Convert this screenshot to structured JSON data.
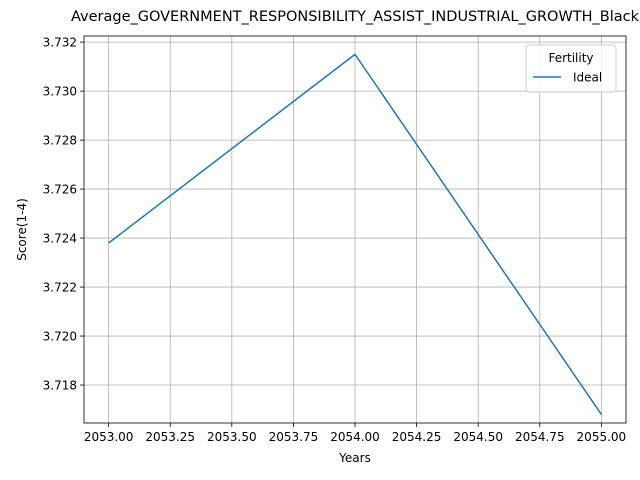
{
  "chart_data": {
    "type": "line",
    "title": "Average_GOVERNMENT_RESPONSIBILITY_ASSIST_INDUSTRIAL_GROWTH_Black",
    "xlabel": "Years",
    "ylabel": "Score(1-4)",
    "x": [
      2053,
      2054,
      2055
    ],
    "series": [
      {
        "name": "Ideal",
        "values": [
          3.7238,
          3.7315,
          3.7168
        ],
        "color": "#1f77b4"
      }
    ],
    "xlim": [
      2052.9,
      2055.1
    ],
    "ylim": [
      3.71645,
      3.73225
    ],
    "xticks": [
      2053.0,
      2053.25,
      2053.5,
      2053.75,
      2054.0,
      2054.25,
      2054.5,
      2054.75,
      2055.0
    ],
    "xtick_labels": [
      "2053.00",
      "2053.25",
      "2053.50",
      "2053.75",
      "2054.00",
      "2054.25",
      "2054.50",
      "2054.75",
      "2055.00"
    ],
    "yticks": [
      3.718,
      3.72,
      3.722,
      3.724,
      3.726,
      3.728,
      3.73,
      3.732
    ],
    "ytick_labels": [
      "3.718",
      "3.720",
      "3.722",
      "3.724",
      "3.726",
      "3.728",
      "3.730",
      "3.732"
    ],
    "grid": true,
    "legend": {
      "title": "Fertility",
      "position": "top-right"
    }
  }
}
